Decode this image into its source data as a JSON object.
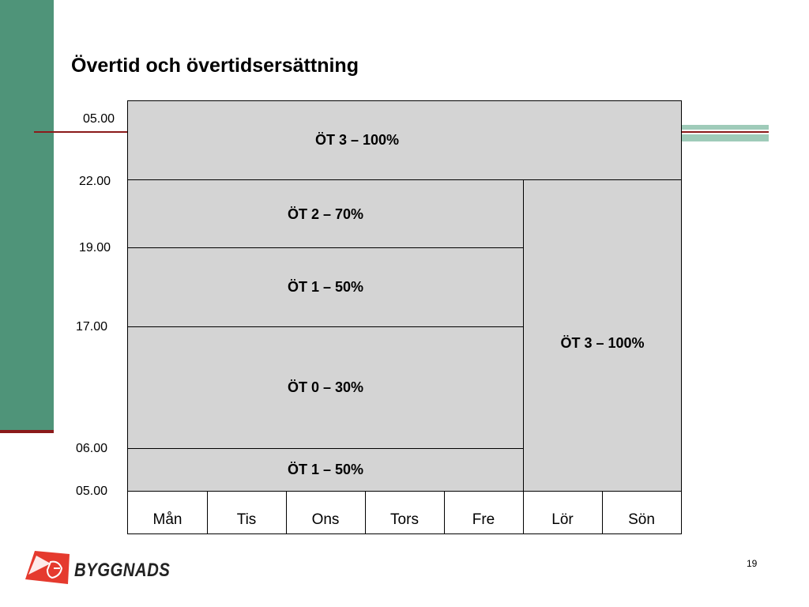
{
  "slide": {
    "title": "Övertid och övertidsersättning",
    "page_number": "19"
  },
  "time_labels": [
    "05.00",
    "22.00",
    "19.00",
    "17.00",
    "06.00",
    "05.00"
  ],
  "cells": {
    "night_all": "ÖT 3 – 100%",
    "evening_70": "ÖT 2 – 70%",
    "evening_50": "ÖT 1 – 50%",
    "day_30": "ÖT 0 – 30%",
    "morning_50": "ÖT 1 – 50%",
    "weekend": "ÖT 3 – 100%"
  },
  "days": [
    "Mån",
    "Tis",
    "Ons",
    "Tors",
    "Fre",
    "Lör",
    "Sön"
  ],
  "logo": {
    "text": "BYGGNADS",
    "color": "#e53a2e"
  },
  "colors": {
    "sidebar": "#4f9479",
    "accent_line": "#8b1a1a",
    "cell_fill": "#d4d4d4"
  }
}
